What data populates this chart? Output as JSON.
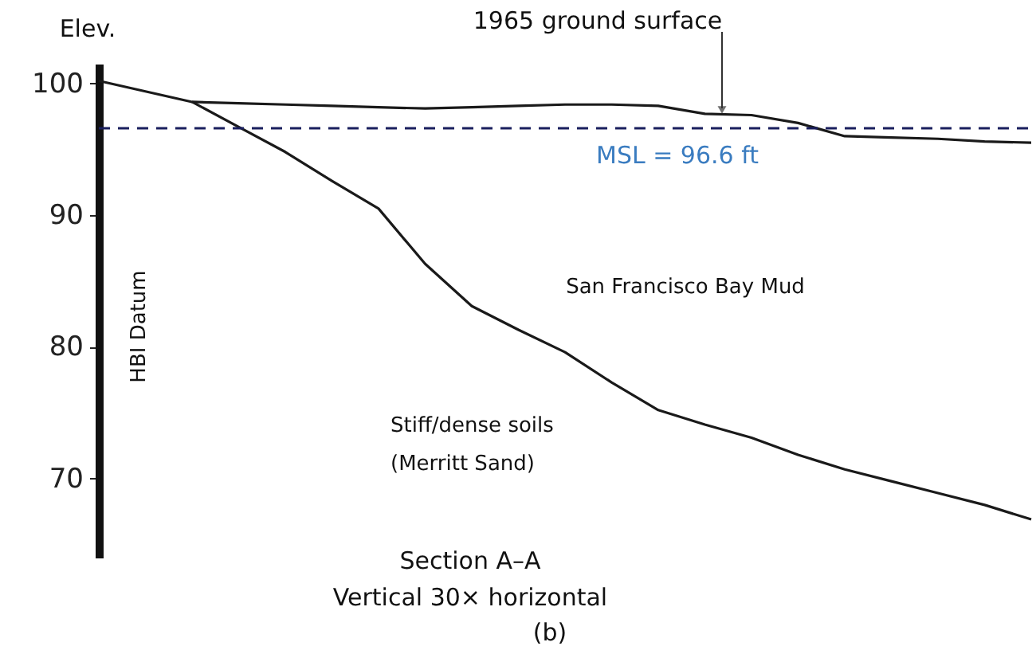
{
  "chart_data": {
    "type": "line",
    "ylabel": "Elev.",
    "categories": [
      null,
      null,
      null,
      null,
      null,
      null,
      null,
      null,
      null,
      null,
      null,
      null,
      null,
      null,
      null,
      null,
      null,
      null,
      null,
      null,
      null
    ],
    "ylim": [
      64,
      101.5
    ],
    "yticks": [
      70,
      80,
      90,
      100
    ],
    "tick_labels": "y",
    "grid": false,
    "marker": "none",
    "line_style": "solid",
    "series": [
      {
        "color": "#1a1a1a",
        "values": [
          100.2,
          99.4,
          98.6,
          98.5,
          98.4,
          98.3,
          98.2,
          98.1,
          98.2,
          98.3,
          98.4,
          98.4,
          98.3,
          97.7,
          97.6,
          97.0,
          96.0,
          95.9,
          95.8,
          95.6,
          95.5
        ]
      },
      {
        "color": "#1a1a1a",
        "values": [
          null,
          null,
          98.6,
          96.7,
          94.8,
          92.6,
          90.5,
          86.3,
          83.1,
          81.3,
          79.6,
          77.3,
          75.2,
          74.1,
          73.1,
          71.8,
          70.7,
          69.8,
          68.9,
          68.0,
          66.9
        ]
      }
    ],
    "ref_lines": [
      {
        "axis": "y",
        "value": 96.6,
        "label": "MSL = 96.6 ft",
        "color": "#1a1f5e",
        "line_style": "dashed"
      }
    ],
    "annotations": [
      "1965 ground surface",
      "HBI Datum",
      "San Francisco Bay Mud",
      "Stiff/dense soils\n(Merritt Sand)",
      "Section A–A",
      "Vertical 30× horizontal",
      "(b)"
    ]
  }
}
